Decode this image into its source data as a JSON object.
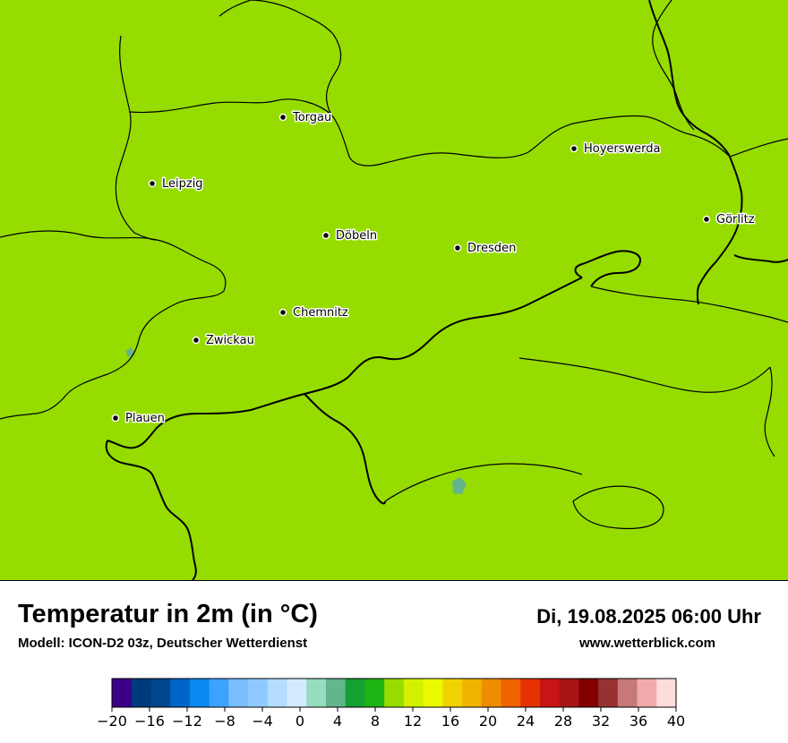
{
  "title": "Temperatur in 2m (in °C)",
  "model": "Modell: ICON-D2 03z, Deutscher Wetterdienst",
  "datetime": "Di, 19.08.2025 06:00 Uhr",
  "website": "www.wetterblick.com",
  "cities": [
    {
      "name": "Torgau"
    },
    {
      "name": "Hoyerswerda"
    },
    {
      "name": "Leipzig"
    },
    {
      "name": "Görlitz"
    },
    {
      "name": "Döbeln"
    },
    {
      "name": "Dresden"
    },
    {
      "name": "Chemnitz"
    },
    {
      "name": "Zwickau"
    },
    {
      "name": "Plauen"
    }
  ],
  "legend": {
    "colors": [
      "#3b0088",
      "#003a7d",
      "#00468c",
      "#0064c8",
      "#0a88f0",
      "#3ba3ff",
      "#79bdff",
      "#8fc9ff",
      "#b3dcff",
      "#d4ebff",
      "#96dcbe",
      "#64b48c",
      "#14a032",
      "#1eb414",
      "#96dc00",
      "#d2f000",
      "#ebfa00",
      "#f0d200",
      "#f0b400",
      "#f08c00",
      "#f06400",
      "#e63200",
      "#c81414",
      "#aa1414",
      "#820000",
      "#963232",
      "#c87878",
      "#f0aaaa",
      "#ffdcdc"
    ],
    "ticks": [
      "−20",
      "−16",
      "−12",
      "−8",
      "−4",
      "0",
      "4",
      "8",
      "12",
      "16",
      "20",
      "24",
      "28",
      "32",
      "36",
      "40"
    ]
  },
  "map_colors": {
    "lime": "#96dc00",
    "light_green": "#1eb414",
    "green": "#14a032",
    "yellow_green": "#d2f000",
    "teal": "#64b48c",
    "border": "#000000"
  }
}
